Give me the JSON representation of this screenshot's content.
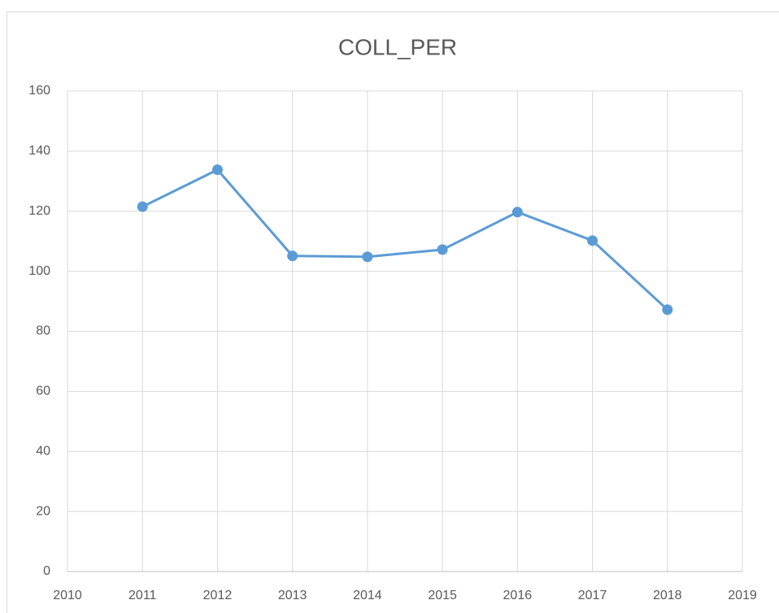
{
  "chart_data": {
    "type": "line",
    "title": "COLL_PER",
    "x": [
      2011,
      2012,
      2013,
      2014,
      2015,
      2016,
      2017,
      2018
    ],
    "series": [
      {
        "name": "COLL_PER",
        "color": "#5b9bd5",
        "values": [
          121.5,
          133.8,
          105.1,
          104.8,
          107.2,
          119.7,
          110.2,
          87.2
        ]
      }
    ],
    "xlim": [
      2010,
      2019
    ],
    "xticks": [
      2010,
      2011,
      2012,
      2013,
      2014,
      2015,
      2016,
      2017,
      2018,
      2019
    ],
    "ylim": [
      0,
      160
    ],
    "yticks": [
      0,
      20,
      40,
      60,
      80,
      100,
      120,
      140,
      160
    ],
    "grid": true,
    "legend": false
  }
}
